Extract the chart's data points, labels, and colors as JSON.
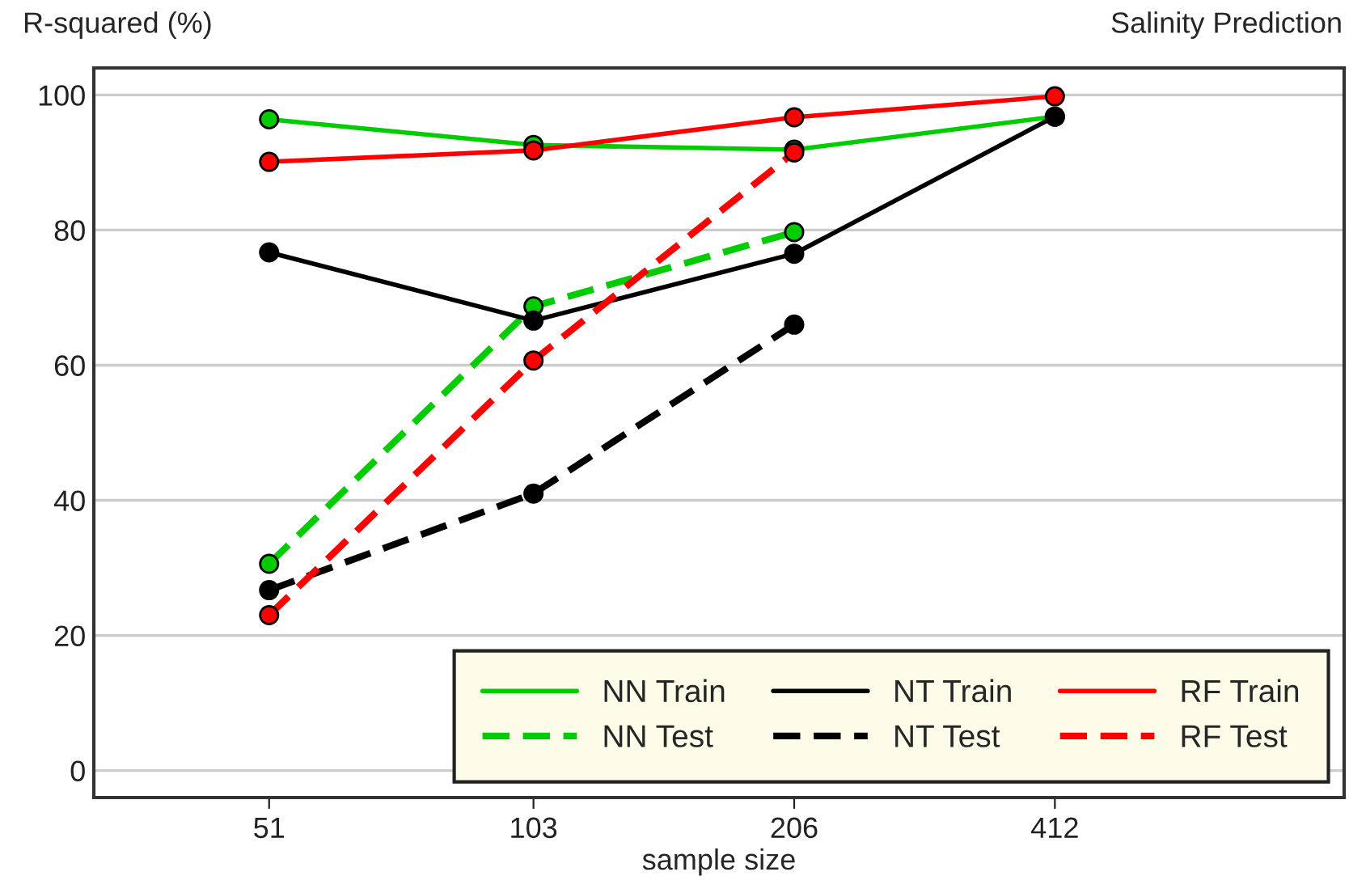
{
  "chart_data": {
    "type": "line",
    "title": "Salinity Prediction",
    "ylabel": "R-squared (%)",
    "xlabel": "sample size",
    "x": [
      51,
      103,
      206,
      412
    ],
    "series": [
      {
        "name": "NN Train",
        "color": "#00cc00",
        "line_style": "solid",
        "values": [
          96.4,
          92.6,
          91.9,
          96.8
        ]
      },
      {
        "name": "NN Test",
        "color": "#00cc00",
        "line_style": "dashed",
        "values": [
          30.6,
          68.7,
          79.7,
          null
        ]
      },
      {
        "name": "NT Train",
        "color": "#000000",
        "line_style": "solid",
        "values": [
          76.7,
          66.6,
          76.5,
          96.8
        ]
      },
      {
        "name": "NT Test",
        "color": "#000000",
        "line_style": "dashed",
        "values": [
          26.7,
          41.0,
          66.0,
          null
        ]
      },
      {
        "name": "RF Train",
        "color": "#ff0000",
        "line_style": "solid",
        "values": [
          90.1,
          91.8,
          96.7,
          99.8
        ]
      },
      {
        "name": "RF Test",
        "color": "#ff0000",
        "line_style": "dashed",
        "values": [
          23.0,
          60.7,
          91.5,
          null
        ]
      }
    ],
    "log": "x",
    "xlim": [
      32,
      889
    ],
    "xticks": [
      51,
      103,
      206,
      412
    ],
    "ylim": [
      -4,
      104
    ],
    "yticks": [
      0,
      20,
      40,
      60,
      80,
      100
    ],
    "grid": "y",
    "legend": "bottom right",
    "marker": "circle"
  }
}
